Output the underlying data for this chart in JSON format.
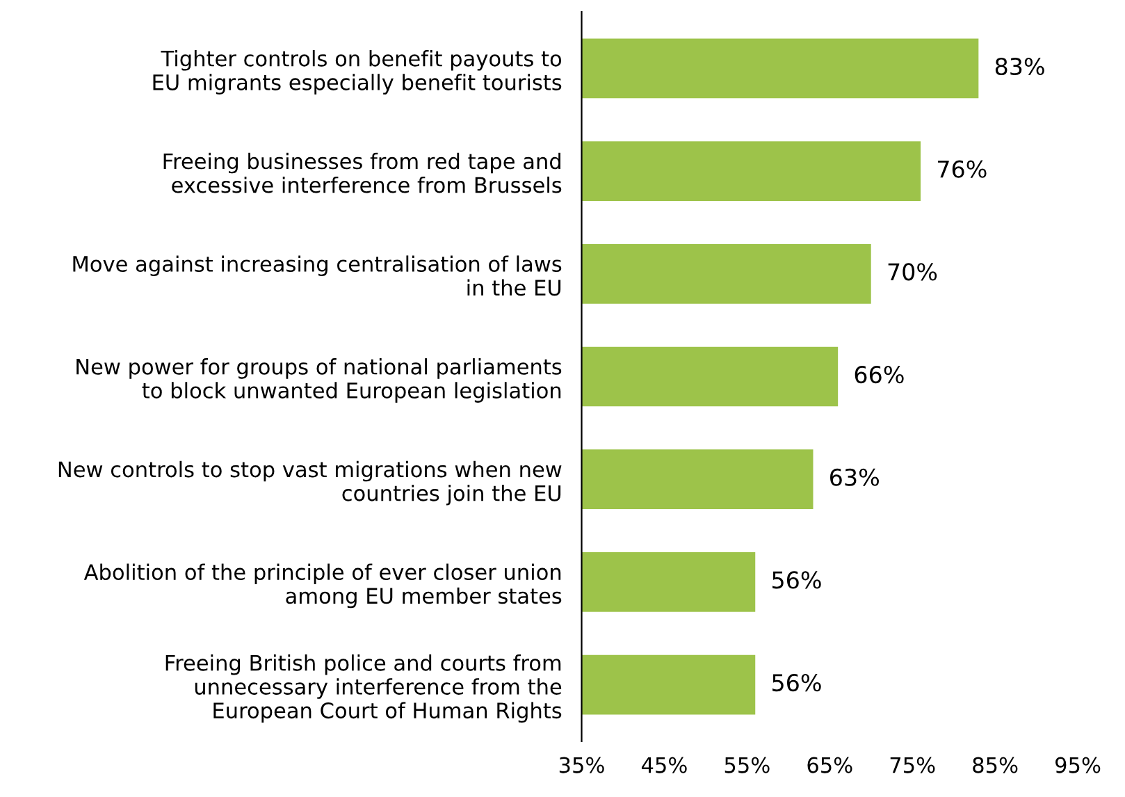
{
  "chart_data": {
    "type": "bar",
    "orientation": "horizontal",
    "categories": [
      "Tighter controls on benefit payouts to\nEU migrants especially benefit tourists",
      "Freeing businesses from red tape and\nexcessive interference from Brussels",
      "Move against increasing centralisation of laws\nin the EU",
      "New power for groups of national parliaments\nto block unwanted European legislation",
      "New controls to stop vast migrations when new\ncountries join the EU",
      "Abolition of the principle of ever closer union\namong EU member states",
      "Freeing British police and courts from\nunnecessary interference from the\nEuropean Court of Human Rights"
    ],
    "values": [
      83,
      76,
      70,
      66,
      63,
      56,
      56
    ],
    "value_labels": [
      "83%",
      "76%",
      "70%",
      "66%",
      "63%",
      "56%",
      "56%"
    ],
    "color": "#9dc34a",
    "xlim": [
      35,
      95
    ],
    "xticks": [
      {
        "value": 35,
        "label": "35%"
      },
      {
        "value": 45,
        "label": "45%"
      },
      {
        "value": 55,
        "label": "55%"
      },
      {
        "value": 65,
        "label": "65%"
      },
      {
        "value": 75,
        "label": "75%"
      },
      {
        "value": 85,
        "label": "85%"
      },
      {
        "value": 95,
        "label": "95%"
      }
    ],
    "grid": false,
    "legend": false
  }
}
